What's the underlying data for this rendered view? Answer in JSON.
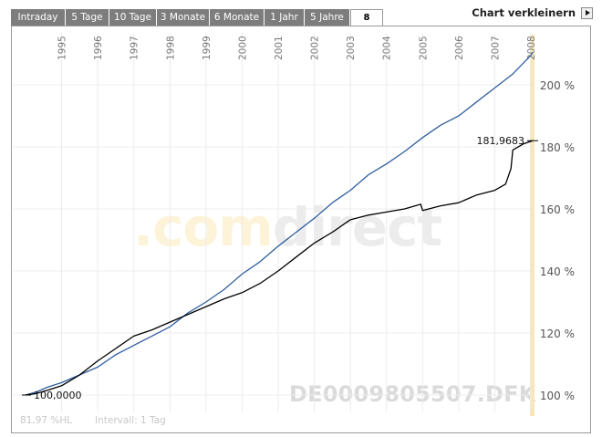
{
  "tabs": [
    {
      "label": "Intraday",
      "active": false
    },
    {
      "label": "5 Tage",
      "active": false
    },
    {
      "label": "10 Tage",
      "active": false
    },
    {
      "label": "3 Monate",
      "active": false
    },
    {
      "label": "6 Monate",
      "active": false
    },
    {
      "label": "1 Jahr",
      "active": false
    },
    {
      "label": "5 Jahre",
      "active": false
    },
    {
      "label": "8",
      "active": true
    }
  ],
  "header": {
    "shrink_label": "Chart verkleinern",
    "shrink_icon": "play-icon"
  },
  "watermark": {
    "brand_part1": ".com",
    "brand_part2": "direct",
    "code": "DE0009805507.DFK"
  },
  "footer": {
    "stats": "81,97 %HL",
    "interval": "Intervall: 1 Tag"
  },
  "colors": {
    "blue_series": "#2f5f9e",
    "black_series": "#000000",
    "highlight": "#f8e7b5"
  },
  "chart_data": {
    "type": "line",
    "x_ticks": [
      "1995",
      "1996",
      "1997",
      "1998",
      "1999",
      "2000",
      "2001",
      "2002",
      "2003",
      "2004",
      "2005",
      "2006",
      "2007",
      "2008"
    ],
    "y_ticks": [
      "100 %",
      "120 %",
      "140 %",
      "160 %",
      "180 %",
      "200 %"
    ],
    "ylim": [
      96,
      212
    ],
    "xlim": [
      1994.0,
      2008.2
    ],
    "grid": true,
    "start_label": "100,0000",
    "end_label": "181,9683",
    "series": [
      {
        "color": "#2f5f9e",
        "x": [
          1994.0,
          1994.3,
          1994.6,
          1995.0,
          1995.5,
          1996.0,
          1996.5,
          1997.0,
          1997.5,
          1998.0,
          1998.5,
          1999.0,
          1999.5,
          2000.0,
          2000.5,
          2001.0,
          2001.5,
          2002.0,
          2002.5,
          2003.0,
          2003.5,
          2004.0,
          2004.5,
          2005.0,
          2005.5,
          2006.0,
          2006.5,
          2007.0,
          2007.5,
          2008.0,
          2008.05
        ],
        "y": [
          100,
          101,
          102.5,
          104,
          106.5,
          109,
          113,
          116,
          119,
          122,
          126.5,
          130,
          134,
          139,
          143,
          148,
          152.5,
          157,
          162,
          166,
          171,
          174.5,
          178.5,
          183,
          187,
          190,
          194.5,
          199,
          203.5,
          209.5,
          210.5
        ]
      },
      {
        "color": "#000000",
        "x": [
          1994.0,
          1994.3,
          1994.6,
          1995.0,
          1995.5,
          1996.0,
          1996.5,
          1997.0,
          1997.5,
          1998.0,
          1998.5,
          1999.0,
          1999.5,
          2000.0,
          2000.5,
          2001.0,
          2001.5,
          2002.0,
          2002.5,
          2003.0,
          2003.5,
          2004.0,
          2004.5,
          2004.95,
          2005.0,
          2005.5,
          2006.0,
          2006.5,
          2007.0,
          2007.3,
          2007.45,
          2007.5,
          2007.8,
          2008.05
        ],
        "y": [
          100,
          100.5,
          101.5,
          103,
          106.5,
          111,
          115,
          119,
          121,
          123.5,
          126,
          128.5,
          131,
          133,
          136,
          140,
          144.5,
          149,
          152.5,
          156.5,
          158,
          159,
          160,
          161.5,
          159.5,
          161,
          162,
          164.5,
          166,
          168,
          173,
          179,
          181,
          182
        ]
      }
    ]
  }
}
